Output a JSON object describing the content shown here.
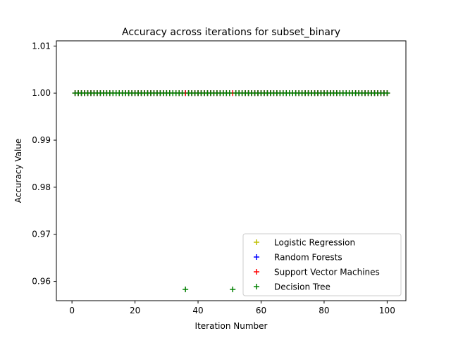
{
  "chart_data": {
    "type": "scatter",
    "title": "Accuracy across iterations for subset_binary",
    "xlabel": "Iteration Number",
    "ylabel": "Accuracy Value",
    "xlim": [
      -4.95,
      105.95
    ],
    "ylim": [
      0.9559,
      1.0111
    ],
    "xticks": [
      0,
      20,
      40,
      60,
      80,
      100
    ],
    "yticks": [
      0.96,
      0.97,
      0.98,
      0.99,
      1.0,
      1.01
    ],
    "xtick_labels": [
      "0",
      "20",
      "40",
      "60",
      "80",
      "100"
    ],
    "ytick_labels": [
      "0.96",
      "0.97",
      "0.98",
      "0.99",
      "1.00",
      "1.01"
    ],
    "grid": false,
    "legend_position": "lower-right",
    "marker": "+",
    "x_range": [
      1,
      100
    ],
    "series": [
      {
        "name": "Logistic Regression",
        "color": "#bfbf00",
        "default_value": 1.0,
        "exceptions": []
      },
      {
        "name": "Random Forests",
        "color": "#0000ff",
        "default_value": 1.0,
        "exceptions": []
      },
      {
        "name": "Support Vector Machines",
        "color": "#ff0000",
        "default_value": 1.0,
        "exceptions": []
      },
      {
        "name": "Decision Tree",
        "color": "#008000",
        "default_value": 1.0,
        "exceptions": [
          {
            "x": 36,
            "y": 0.9583
          },
          {
            "x": 51,
            "y": 0.9583
          }
        ]
      }
    ]
  }
}
